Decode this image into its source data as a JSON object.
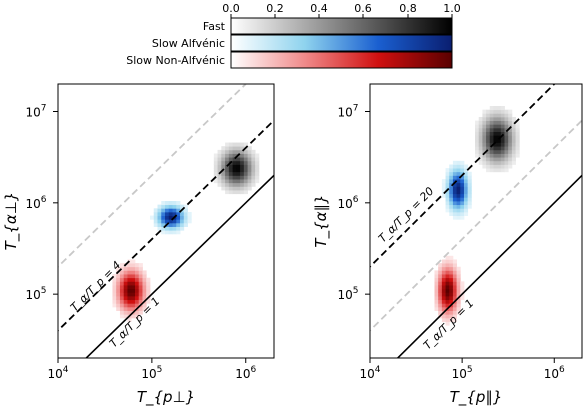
{
  "colorbar": {
    "ticks": [
      "0.0",
      "0.2",
      "0.4",
      "0.6",
      "0.8",
      "1.0"
    ],
    "entries": [
      {
        "label": "Fast",
        "scale": [
          "#ffffff",
          "#000000"
        ]
      },
      {
        "label": "Slow Alfvénic",
        "scale": [
          "#ffffff",
          "#8fd3ee",
          "#1a5fd0",
          "#0a1e70"
        ]
      },
      {
        "label": "Slow Non-Alfvénic",
        "scale": [
          "#ffffff",
          "#f08a8a",
          "#d01010",
          "#5a0000"
        ]
      }
    ]
  },
  "panels": [
    {
      "xlabel": "T_{p⊥}",
      "ylabel": "T_{α⊥}",
      "x_ticks": [
        "10^4",
        "10^5",
        "10^6"
      ],
      "y_ticks": [
        "10^5",
        "10^6",
        "10^7"
      ],
      "lines": [
        {
          "ratio": 1,
          "style": "solid",
          "color": "#000000",
          "label": "T_α/T_p = 1"
        },
        {
          "ratio": 4,
          "style": "dashed",
          "color": "#000000",
          "label": "T_α/T_p = 4"
        },
        {
          "ratio": 20,
          "style": "dashed",
          "color": "#c8c8c8",
          "label": ""
        }
      ]
    },
    {
      "xlabel": "T_{p∥}",
      "ylabel": "T_{α∥}",
      "x_ticks": [
        "10^4",
        "10^5",
        "10^6"
      ],
      "y_ticks": [
        "10^5",
        "10^6",
        "10^7"
      ],
      "lines": [
        {
          "ratio": 1,
          "style": "solid",
          "color": "#000000",
          "label": "T_α/T_p = 1"
        },
        {
          "ratio": 20,
          "style": "dashed",
          "color": "#000000",
          "label": "T_α/T_p = 20"
        },
        {
          "ratio": 4,
          "style": "dashed",
          "color": "#c8c8c8",
          "label": ""
        }
      ]
    }
  ],
  "chart_data": [
    {
      "type": "heatmap",
      "title": "",
      "xlabel": "T_{p⊥}",
      "ylabel": "T_{α⊥}",
      "xscale": "log",
      "yscale": "log",
      "xlim": [
        10000,
        2000000
      ],
      "ylim": [
        20000,
        20000000
      ],
      "grid": false,
      "series": [
        {
          "name": "Fast",
          "cmap": "greys",
          "center": [
            800000,
            2400000
          ],
          "spread_log": [
            0.11,
            0.13
          ],
          "peak": 1.0
        },
        {
          "name": "Slow Alfvénic",
          "cmap": "blues",
          "center": [
            160000,
            700000
          ],
          "spread_log": [
            0.09,
            0.08
          ],
          "peak": 1.0
        },
        {
          "name": "Slow Non-Alfvénic",
          "cmap": "reds",
          "center": [
            60000,
            110000
          ],
          "spread_log": [
            0.09,
            0.14
          ],
          "peak": 1.0
        }
      ],
      "reference_lines": [
        {
          "ratio": 1,
          "label": "T_α/T_p = 1"
        },
        {
          "ratio": 4,
          "label": "T_α/T_p = 4"
        },
        {
          "ratio": 20,
          "label": ""
        }
      ]
    },
    {
      "type": "heatmap",
      "title": "",
      "xlabel": "T_{p∥}",
      "ylabel": "T_{α∥}",
      "xscale": "log",
      "yscale": "log",
      "xlim": [
        10000,
        2000000
      ],
      "ylim": [
        20000,
        20000000
      ],
      "grid": false,
      "series": [
        {
          "name": "Fast",
          "cmap": "greys",
          "center": [
            240000,
            5000000
          ],
          "spread_log": [
            0.11,
            0.16
          ],
          "peak": 1.0
        },
        {
          "name": "Slow Alfvénic",
          "cmap": "blues",
          "center": [
            90000,
            1400000
          ],
          "spread_log": [
            0.07,
            0.14
          ],
          "peak": 1.0
        },
        {
          "name": "Slow Non-Alfvénic",
          "cmap": "reds",
          "center": [
            70000,
            110000
          ],
          "spread_log": [
            0.07,
            0.16
          ],
          "peak": 1.0
        }
      ],
      "reference_lines": [
        {
          "ratio": 1,
          "label": "T_α/T_p = 1"
        },
        {
          "ratio": 20,
          "label": "T_α/T_p = 20"
        },
        {
          "ratio": 4,
          "label": ""
        }
      ]
    }
  ]
}
